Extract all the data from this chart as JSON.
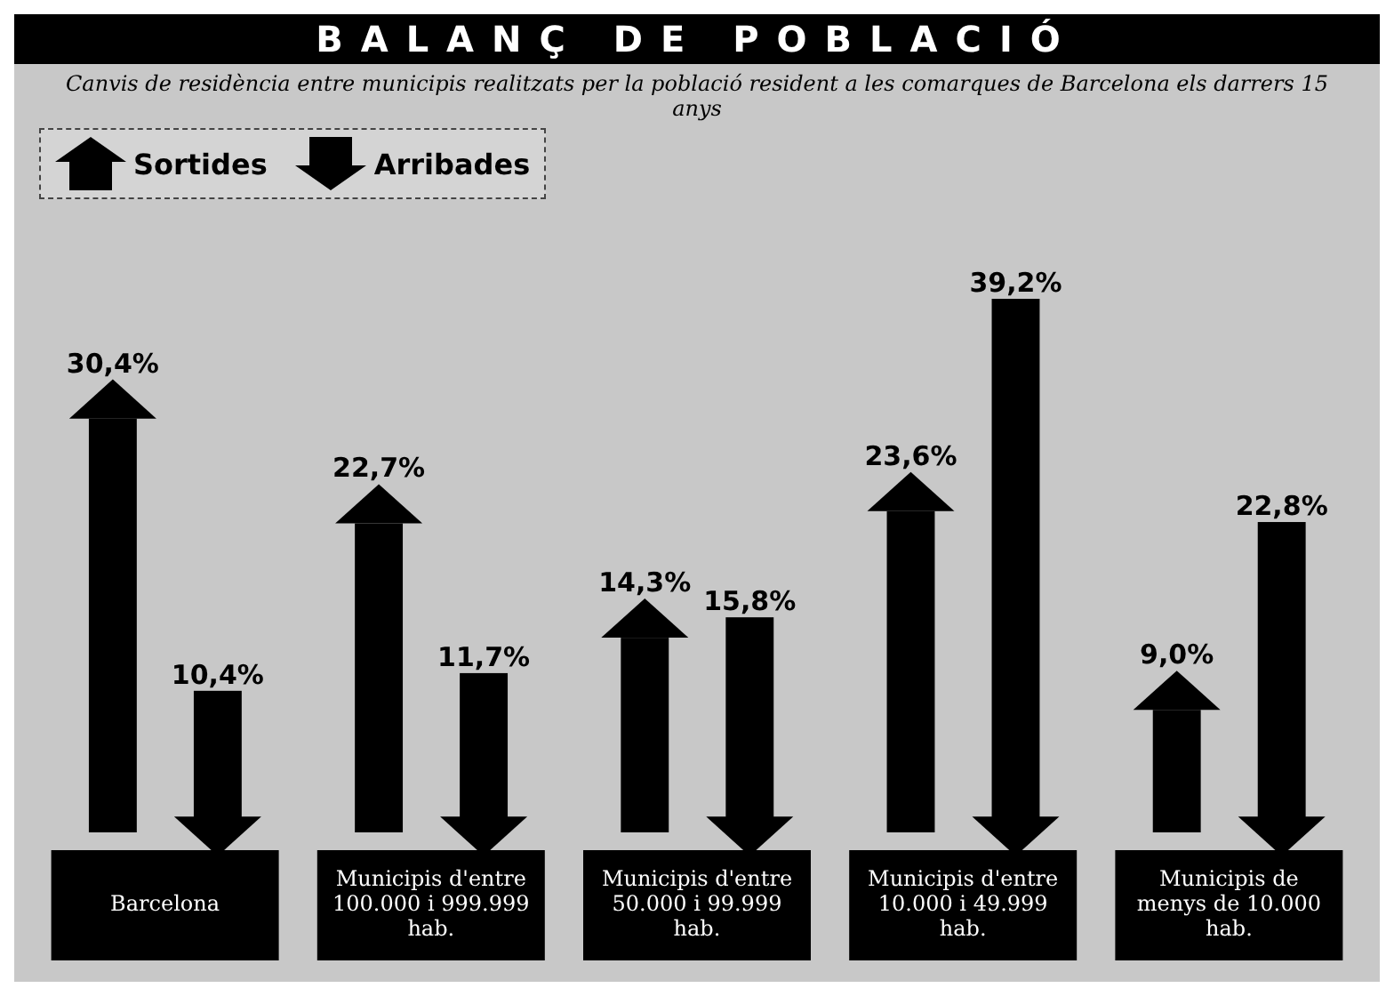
{
  "chart_data": {
    "type": "bar",
    "title": "BALANÇ DE POBLACIÓ",
    "subtitle": "Canvis de residència entre municipis realitzats per la població resident a les comarques de Barcelona els darrers 15 anys",
    "categories": [
      "Barcelona",
      "Municipis d'entre 100.000 i 999.999 hab.",
      "Municipis d'entre 50.000 i 99.999 hab.",
      "Municipis d'entre 10.000 i 49.999 hab.",
      "Municipis de menys de 10.000 hab."
    ],
    "series": [
      {
        "name": "Sortides",
        "color": "#000000",
        "values": [
          30.4,
          22.7,
          14.3,
          23.6,
          9.0
        ],
        "value_labels": [
          "30,4%",
          "22,7%",
          "14,3%",
          "23,6%",
          "9,0%"
        ]
      },
      {
        "name": "Arribades",
        "color": "#000000",
        "values": [
          10.4,
          11.7,
          15.8,
          39.2,
          22.8
        ],
        "value_labels": [
          "10,4%",
          "11,7%",
          "15,8%",
          "39,2%",
          "22,8%"
        ]
      }
    ],
    "legend": "top left"
  }
}
